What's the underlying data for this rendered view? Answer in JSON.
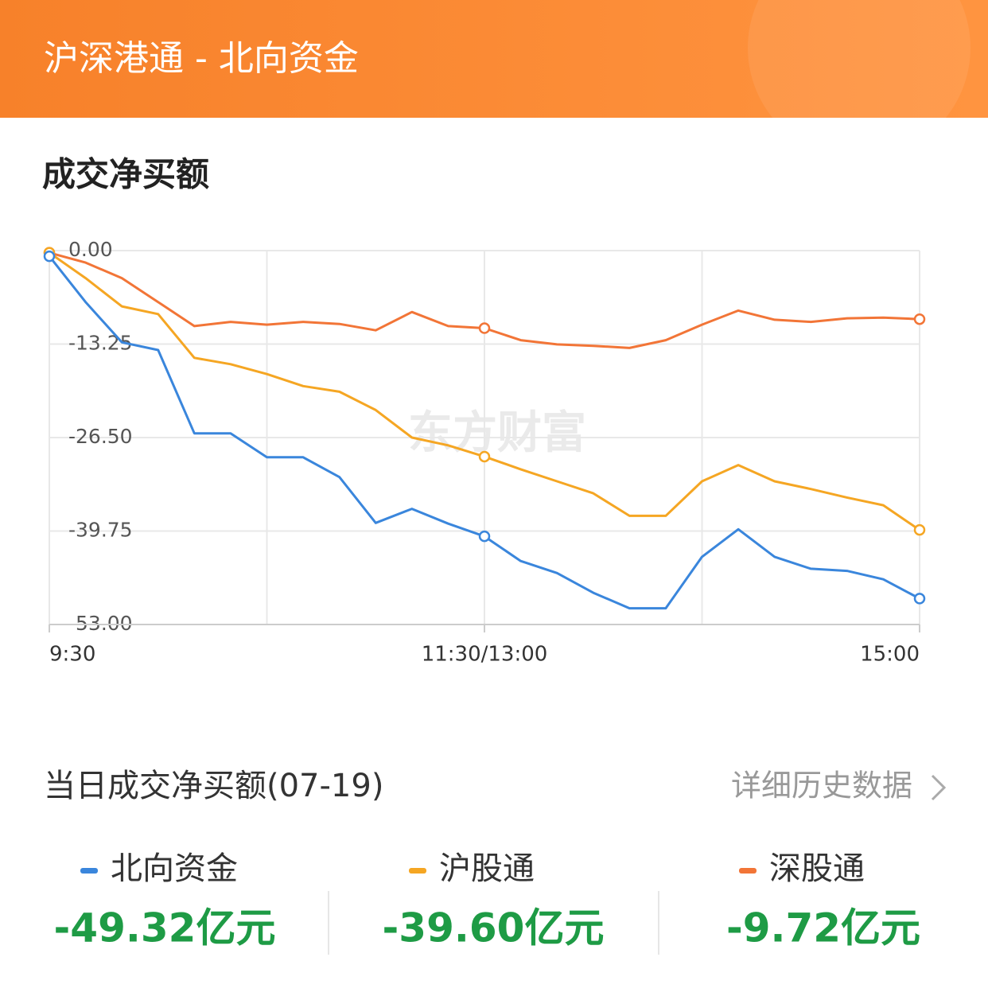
{
  "header": {
    "title": "沪深港通 - 北向资金"
  },
  "section_title": "成交净买额",
  "chart_data": {
    "type": "line",
    "x": [
      0,
      10,
      20,
      30,
      40,
      50,
      60,
      70,
      80,
      90,
      100,
      110,
      120,
      130,
      140,
      150,
      160,
      170,
      180,
      190,
      200,
      210,
      220,
      230,
      240
    ],
    "xlim": [
      0,
      240
    ],
    "xticks": [
      {
        "value": 0,
        "label": "9:30"
      },
      {
        "value": 120,
        "label": "11:30/13:00"
      },
      {
        "value": 240,
        "label": "15:00"
      }
    ],
    "xgrid": [
      0,
      60,
      120,
      180,
      240
    ],
    "ylim": [
      -53,
      0
    ],
    "yticks": [
      {
        "value": 0,
        "label": "0.00"
      },
      -13.25,
      {
        "value": -26.5,
        "label": "-26.50"
      },
      -39.75,
      {
        "value": -53,
        "label": "-53.00"
      }
    ],
    "grid": true,
    "watermark": "东方财富",
    "marker_indices": [
      0,
      12,
      24
    ],
    "series": [
      {
        "name": "北向资金",
        "color": "#3a86dc",
        "values": [
          -0.8,
          -7.3,
          -13,
          -14.1,
          -25.9,
          -25.9,
          -29.3,
          -29.3,
          -32.1,
          -38.6,
          -36.6,
          -38.7,
          -40.5,
          -44,
          -45.7,
          -48.5,
          -50.7,
          -50.7,
          -43.4,
          -39.5,
          -43.4,
          -45.1,
          -45.4,
          -46.6,
          -49.32
        ]
      },
      {
        "name": "沪股通",
        "color": "#f5a623",
        "values": [
          -0.3,
          -3.9,
          -7.9,
          -9,
          -15.2,
          -16.1,
          -17.5,
          -19.2,
          -20,
          -22.6,
          -26.5,
          -27.6,
          -29.2,
          -31,
          -32.7,
          -34.4,
          -37.6,
          -37.6,
          -32.7,
          -30.4,
          -32.7,
          -33.8,
          -35,
          -36.1,
          -39.6
        ]
      },
      {
        "name": "深股通",
        "color": "#f27537",
        "values": [
          -0.3,
          -1.7,
          -3.9,
          -7.3,
          -10.7,
          -10.1,
          -10.5,
          -10.1,
          -10.4,
          -11.3,
          -8.7,
          -10.7,
          -11,
          -12.7,
          -13.3,
          -13.5,
          -13.8,
          -12.7,
          -10.5,
          -8.5,
          -9.8,
          -10.1,
          -9.6,
          -9.5,
          -9.72
        ]
      }
    ]
  },
  "summary": {
    "title": "当日成交净买额(07-19)",
    "link": "详细历史数据",
    "items": [
      {
        "name": "北向资金",
        "value": "-49.32亿元"
      },
      {
        "name": "沪股通",
        "value": "-39.60亿元"
      },
      {
        "name": "深股通",
        "value": "-9.72亿元"
      }
    ]
  }
}
